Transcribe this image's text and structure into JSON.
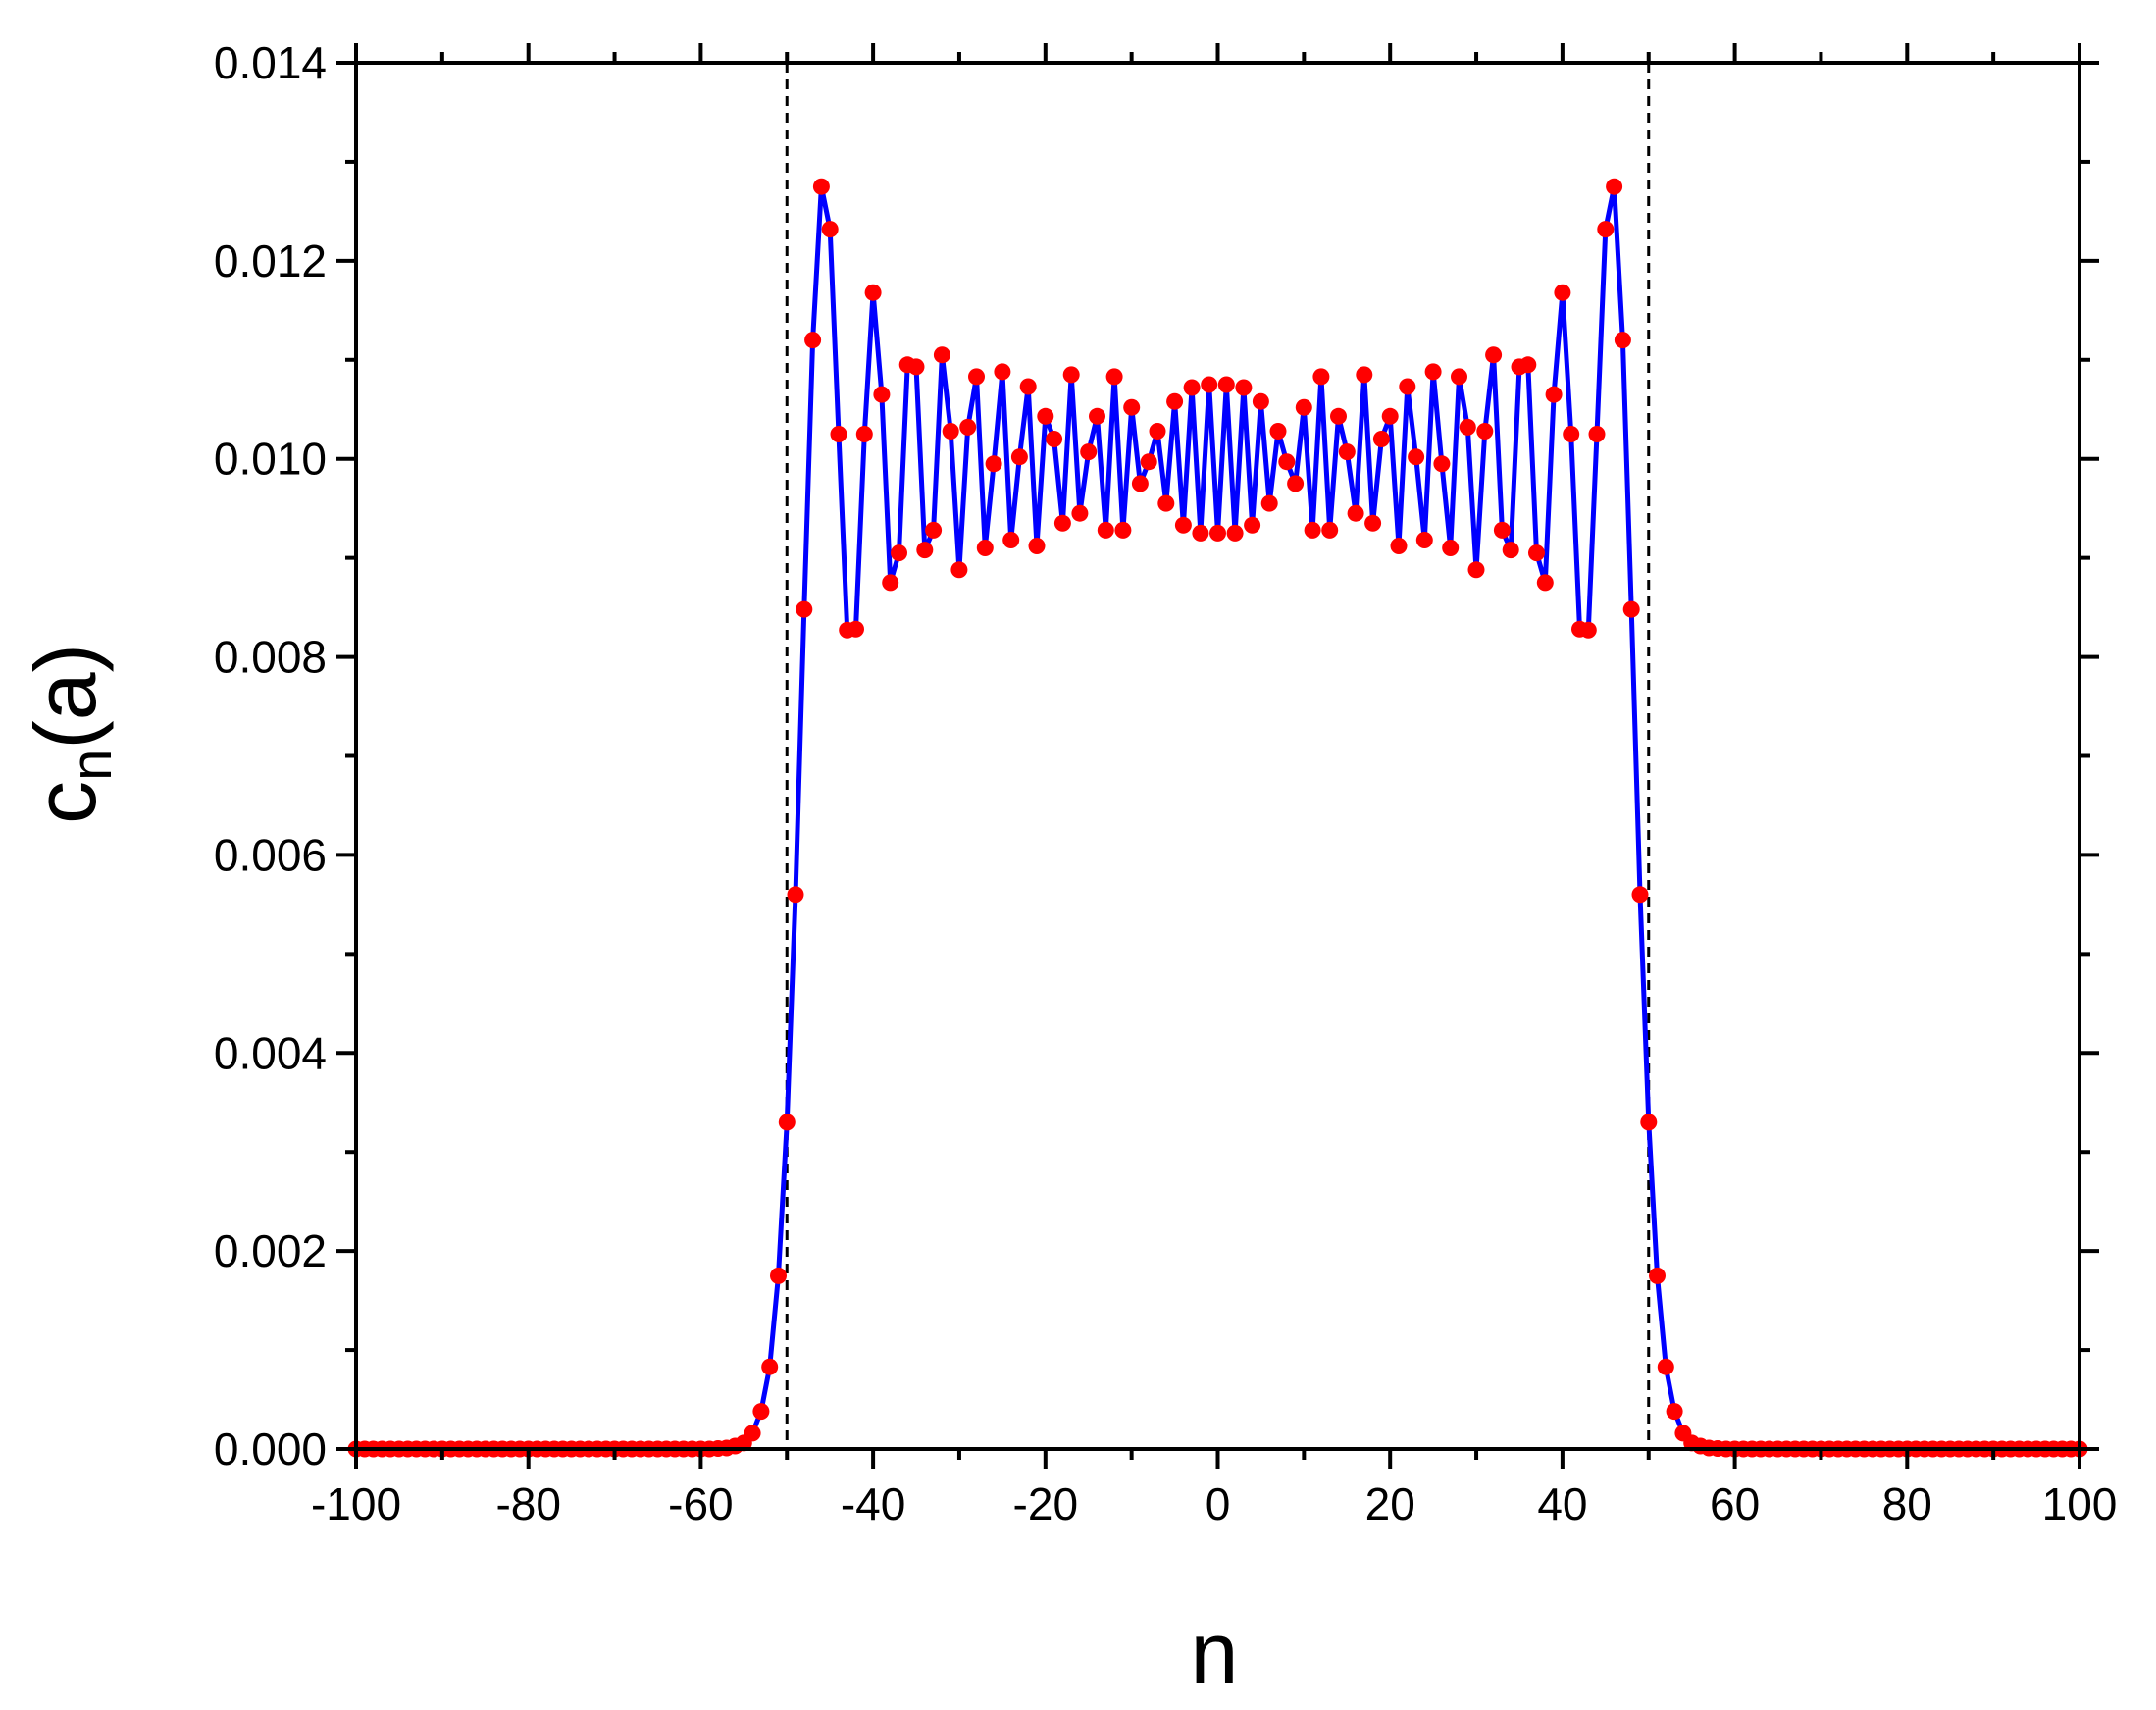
{
  "chart_data": {
    "type": "line",
    "xlabel": "n",
    "ylabel_main": "c",
    "ylabel_sub": "n",
    "ylabel_tail": "(a)",
    "xlim": [
      -100,
      100
    ],
    "ylim": [
      0,
      0.014
    ],
    "xticks": [
      -100,
      -80,
      -60,
      -40,
      -20,
      0,
      20,
      40,
      60,
      80,
      100
    ],
    "xtick_labels": [
      "-100",
      "-80",
      "-60",
      "-40",
      "-20",
      "0",
      "20",
      "40",
      "60",
      "80",
      "100"
    ],
    "yticks": [
      0,
      0.002,
      0.004,
      0.006,
      0.008,
      0.01,
      0.012,
      0.014
    ],
    "ytick_labels": [
      "0.000",
      "0.002",
      "0.004",
      "0.006",
      "0.008",
      "0.010",
      "0.012",
      "0.014"
    ],
    "reference_lines_x": [
      -50,
      50
    ],
    "grid": false,
    "colors": {
      "line": "#0000ff",
      "markers": "#ff0000",
      "reference": "#000000"
    },
    "series": [
      {
        "x": [
          -100,
          -99,
          -98,
          -97,
          -96,
          -95,
          -94,
          -93,
          -92,
          -91,
          -90,
          -89,
          -88,
          -87,
          -86,
          -85,
          -84,
          -83,
          -82,
          -81,
          -80,
          -79,
          -78,
          -77,
          -76,
          -75,
          -74,
          -73,
          -72,
          -71,
          -70,
          -69,
          -68,
          -67,
          -66,
          -65,
          -64,
          -63,
          -62,
          -61,
          -60,
          -59,
          -58,
          -57,
          -56,
          -55,
          -54,
          -53,
          -52,
          -51,
          -50,
          -49,
          -48,
          -47,
          -46,
          -45,
          -44,
          -43,
          -42,
          -41,
          -40,
          -39,
          -38,
          -37,
          -36,
          -35,
          -34,
          -33,
          -32,
          -31,
          -30,
          -29,
          -28,
          -27,
          -26,
          -25,
          -24,
          -23,
          -22,
          -21,
          -20,
          -19,
          -18,
          -17,
          -16,
          -15,
          -14,
          -13,
          -12,
          -11,
          -10,
          -9,
          -8,
          -7,
          -6,
          -5,
          -4,
          -3,
          -2,
          -1,
          0,
          1,
          2,
          3,
          4,
          5,
          6,
          7,
          8,
          9,
          10,
          11,
          12,
          13,
          14,
          15,
          16,
          17,
          18,
          19,
          20,
          21,
          22,
          23,
          24,
          25,
          26,
          27,
          28,
          29,
          30,
          31,
          32,
          33,
          34,
          35,
          36,
          37,
          38,
          39,
          40,
          41,
          42,
          43,
          44,
          45,
          46,
          47,
          48,
          49,
          50,
          51,
          52,
          53,
          54,
          55,
          56,
          57,
          58,
          59,
          60,
          61,
          62,
          63,
          64,
          65,
          66,
          67,
          68,
          69,
          70,
          71,
          72,
          73,
          74,
          75,
          76,
          77,
          78,
          79,
          80,
          81,
          82,
          83,
          84,
          85,
          86,
          87,
          88,
          89,
          90,
          91,
          92,
          93,
          94,
          95,
          96,
          97,
          98,
          99,
          100
        ],
        "y": [
          0,
          0,
          0,
          0,
          0,
          0,
          0,
          0,
          0,
          0,
          0,
          0,
          0,
          0,
          0,
          0,
          0,
          0,
          0,
          0,
          0,
          0,
          0,
          0,
          0,
          0,
          0,
          0,
          0,
          0,
          0,
          0,
          0,
          0,
          0,
          0,
          0,
          0,
          0,
          0,
          0,
          0,
          5e-06,
          1e-05,
          3e-05,
          6e-05,
          0.00016,
          0.00038,
          0.00083,
          0.00175,
          0.0033,
          0.0056,
          0.00848,
          0.0112,
          0.01275,
          0.01232,
          0.01025,
          0.00827,
          0.00828,
          0.01025,
          0.01168,
          0.01065,
          0.00875,
          0.00905,
          0.01095,
          0.01093,
          0.00908,
          0.00928,
          0.01105,
          0.01028,
          0.00888,
          0.01032,
          0.01083,
          0.0091,
          0.00995,
          0.01088,
          0.00918,
          0.01002,
          0.01073,
          0.00912,
          0.01043,
          0.0102,
          0.00935,
          0.01085,
          0.00945,
          0.01007,
          0.01043,
          0.00928,
          0.01083,
          0.00928,
          0.01052,
          0.00975,
          0.00997,
          0.01028,
          0.00955,
          0.01058,
          0.00933,
          0.01072,
          0.00925,
          0.01075,
          0.00925,
          0.01075,
          0.00925,
          0.01072,
          0.00933,
          0.01058,
          0.00955,
          0.01028,
          0.00997,
          0.00975,
          0.01052,
          0.00928,
          0.01083,
          0.00928,
          0.01043,
          0.01007,
          0.00945,
          0.01085,
          0.00935,
          0.0102,
          0.01043,
          0.00912,
          0.01073,
          0.01002,
          0.00918,
          0.01088,
          0.00995,
          0.0091,
          0.01083,
          0.01032,
          0.00888,
          0.01028,
          0.01105,
          0.00928,
          0.00908,
          0.01093,
          0.01095,
          0.00905,
          0.00875,
          0.01065,
          0.01168,
          0.01025,
          0.00828,
          0.00827,
          0.01025,
          0.01232,
          0.01275,
          0.0112,
          0.00848,
          0.0056,
          0.0033,
          0.00175,
          0.00083,
          0.00038,
          0.00016,
          6e-05,
          3e-05,
          1e-05,
          5e-06,
          0,
          0,
          0,
          0,
          0,
          0,
          0,
          0,
          0,
          0,
          0,
          0,
          0,
          0,
          0,
          0,
          0,
          0,
          0,
          0,
          0,
          0,
          0,
          0,
          0,
          0,
          0,
          0,
          0,
          0,
          0,
          0,
          0,
          0,
          0,
          0,
          0,
          0,
          0,
          0,
          0,
          0
        ]
      }
    ]
  }
}
